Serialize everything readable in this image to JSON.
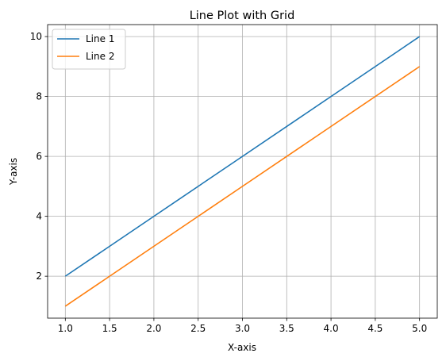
{
  "chart_data": {
    "type": "line",
    "title": "Line Plot with Grid",
    "xlabel": "X-axis",
    "ylabel": "Y-axis",
    "xlim": [
      0.8,
      5.2
    ],
    "ylim": [
      0.6,
      10.4
    ],
    "x_ticks": [
      1.0,
      1.5,
      2.0,
      2.5,
      3.0,
      3.5,
      4.0,
      4.5,
      5.0
    ],
    "x_tick_labels": [
      "1.0",
      "1.5",
      "2.0",
      "2.5",
      "3.0",
      "3.5",
      "4.0",
      "4.5",
      "5.0"
    ],
    "y_ticks": [
      2,
      4,
      6,
      8,
      10
    ],
    "y_tick_labels": [
      "2",
      "4",
      "6",
      "8",
      "10"
    ],
    "grid": true,
    "legend_position": "top-left",
    "x": [
      1,
      2,
      3,
      4,
      5
    ],
    "series": [
      {
        "name": "Line 1",
        "color": "#1f77b4",
        "values": [
          2,
          4,
          6,
          8,
          10
        ]
      },
      {
        "name": "Line 2",
        "color": "#ff7f0e",
        "values": [
          1,
          3,
          5,
          7,
          9
        ]
      }
    ]
  }
}
